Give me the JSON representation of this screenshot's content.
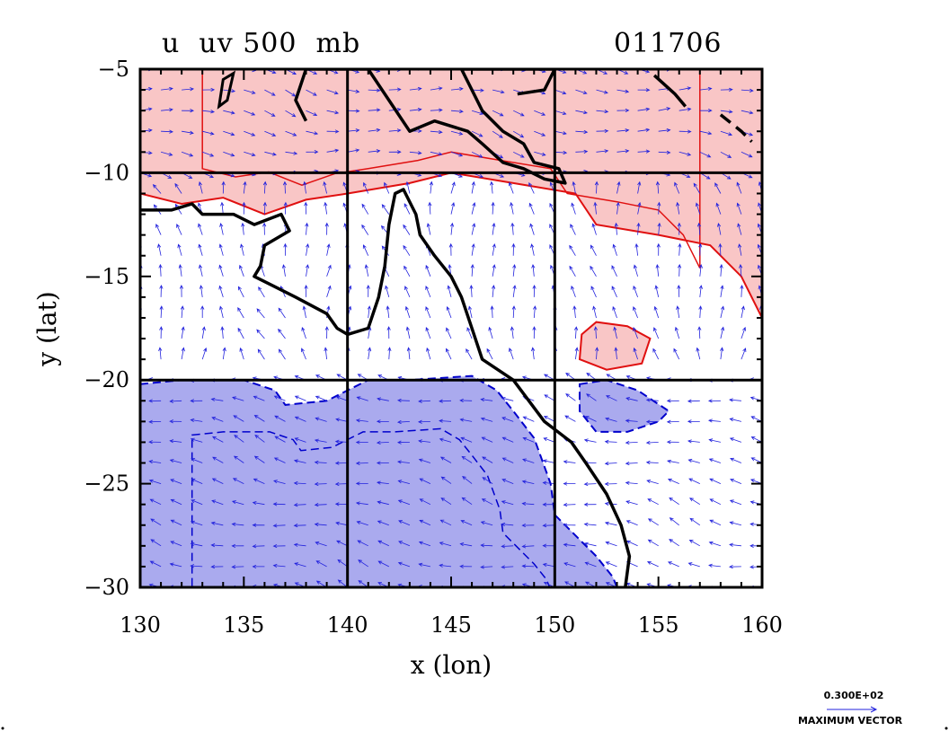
{
  "chart_data": {
    "type": "contour-vector-map",
    "title": "u  uv 500  mb",
    "date_label": "011706",
    "xlabel": "x (lon)",
    "ylabel": "y (lat)",
    "xlim": [
      130,
      160
    ],
    "ylim": [
      -30,
      -5
    ],
    "x_ticks": [
      130,
      135,
      140,
      145,
      150,
      155,
      160
    ],
    "y_ticks": [
      -5,
      -10,
      -15,
      -20,
      -25,
      -30
    ],
    "grid_lines": {
      "x": [
        140,
        150
      ],
      "y": [
        -10,
        -20
      ]
    },
    "colors": {
      "positive_fill": "#f9c6c6",
      "positive_line": "#e01010",
      "negative_fill": "#aaaaee",
      "negative_line": "#0000cc",
      "coast": "#000000",
      "vectors": "#2222dd"
    },
    "positive_region": [
      [
        130,
        -5
      ],
      [
        160,
        -5
      ],
      [
        160,
        -17
      ],
      [
        159,
        -15
      ],
      [
        157.5,
        -13.5
      ],
      [
        155,
        -13
      ],
      [
        152,
        -12.5
      ],
      [
        151,
        -11
      ],
      [
        148,
        -10.5
      ],
      [
        145,
        -10
      ],
      [
        143,
        -10.5
      ],
      [
        140,
        -11
      ],
      [
        138,
        -11.3
      ],
      [
        136,
        -12
      ],
      [
        134,
        -11.2
      ],
      [
        132,
        -11.5
      ],
      [
        130,
        -11
      ]
    ],
    "positive_island": [
      [
        151.3,
        -17.8
      ],
      [
        152,
        -17.2
      ],
      [
        153.5,
        -17.4
      ],
      [
        154.6,
        -18
      ],
      [
        154.2,
        -19.2
      ],
      [
        152.5,
        -19.5
      ],
      [
        151.2,
        -19
      ]
    ],
    "negative_region": [
      [
        130,
        -20.2
      ],
      [
        132,
        -20
      ],
      [
        135,
        -20
      ],
      [
        136.5,
        -20.5
      ],
      [
        137,
        -21.2
      ],
      [
        139,
        -21
      ],
      [
        141,
        -20
      ],
      [
        143,
        -20
      ],
      [
        146,
        -19.8
      ],
      [
        147.2,
        -20.5
      ],
      [
        148,
        -21.5
      ],
      [
        149,
        -22.8
      ],
      [
        149.8,
        -25
      ],
      [
        150,
        -26.5
      ],
      [
        151,
        -27.5
      ],
      [
        152,
        -28.5
      ],
      [
        152.8,
        -29.5
      ],
      [
        153,
        -30
      ],
      [
        130,
        -30
      ]
    ],
    "negative_island": [
      [
        151.2,
        -20.2
      ],
      [
        152.5,
        -20
      ],
      [
        154,
        -20.5
      ],
      [
        155.5,
        -21.5
      ],
      [
        155,
        -22
      ],
      [
        153.5,
        -22.5
      ],
      [
        152,
        -22.5
      ],
      [
        151.2,
        -21.5
      ]
    ],
    "coast_australia": [
      [
        130,
        -11.8
      ],
      [
        131.5,
        -11.8
      ],
      [
        132.5,
        -11.5
      ],
      [
        133,
        -12
      ],
      [
        134.5,
        -12
      ],
      [
        135.5,
        -12.5
      ],
      [
        136.8,
        -12
      ],
      [
        137.2,
        -12.8
      ],
      [
        136,
        -13.5
      ],
      [
        135.8,
        -14.5
      ],
      [
        135.5,
        -15
      ],
      [
        136.5,
        -15.5
      ],
      [
        137.5,
        -16
      ],
      [
        139,
        -16.8
      ],
      [
        139.5,
        -17.5
      ],
      [
        140,
        -17.8
      ],
      [
        141,
        -17.5
      ],
      [
        141.5,
        -16
      ],
      [
        141.8,
        -14.5
      ],
      [
        142,
        -12.5
      ],
      [
        142.3,
        -11
      ],
      [
        142.7,
        -10.8
      ],
      [
        143.3,
        -12
      ],
      [
        143.5,
        -13
      ],
      [
        144.2,
        -14
      ],
      [
        145,
        -15
      ],
      [
        145.5,
        -16
      ],
      [
        146,
        -17.5
      ],
      [
        146.5,
        -19
      ],
      [
        148,
        -20
      ],
      [
        149.5,
        -22
      ],
      [
        150.8,
        -23
      ],
      [
        151.5,
        -24
      ],
      [
        152.5,
        -25.5
      ],
      [
        153.2,
        -27
      ],
      [
        153.6,
        -28.5
      ],
      [
        153.4,
        -30
      ]
    ],
    "coast_new_guinea": [
      [
        138,
        -7.5
      ],
      [
        137.5,
        -6.5
      ],
      [
        138,
        -5
      ],
      [
        141,
        -5
      ],
      [
        143,
        -8
      ],
      [
        144.2,
        -7.5
      ],
      [
        145.8,
        -8
      ],
      [
        146.5,
        -8.6
      ],
      [
        147.5,
        -9.5
      ],
      [
        148.5,
        -9.8
      ],
      [
        149.5,
        -10.3
      ],
      [
        150.5,
        -10.5
      ],
      [
        150.2,
        -9.8
      ],
      [
        149,
        -9.5
      ],
      [
        148.5,
        -8.6
      ],
      [
        147.5,
        -8
      ],
      [
        146.5,
        -7
      ],
      [
        146,
        -6
      ],
      [
        145.5,
        -5
      ],
      [
        150,
        -5
      ],
      [
        149.5,
        -6
      ],
      [
        148.2,
        -6.2
      ]
    ],
    "coast_small_island": [
      [
        134,
        -5.5
      ],
      [
        134.5,
        -5.2
      ],
      [
        134.2,
        -6.5
      ],
      [
        133.8,
        -6.8
      ]
    ],
    "coast_new_britain": [
      [
        154.8,
        -5.3
      ],
      [
        155.8,
        -6.2
      ],
      [
        156.3,
        -6.8
      ]
    ],
    "coast_islands_2": [
      [
        158,
        -7.2
      ],
      [
        159,
        -8
      ],
      [
        159.5,
        -8.5
      ]
    ],
    "vector_caption": "0.300E+02",
    "vector_caption_2": "MAXIMUM VECTOR"
  }
}
